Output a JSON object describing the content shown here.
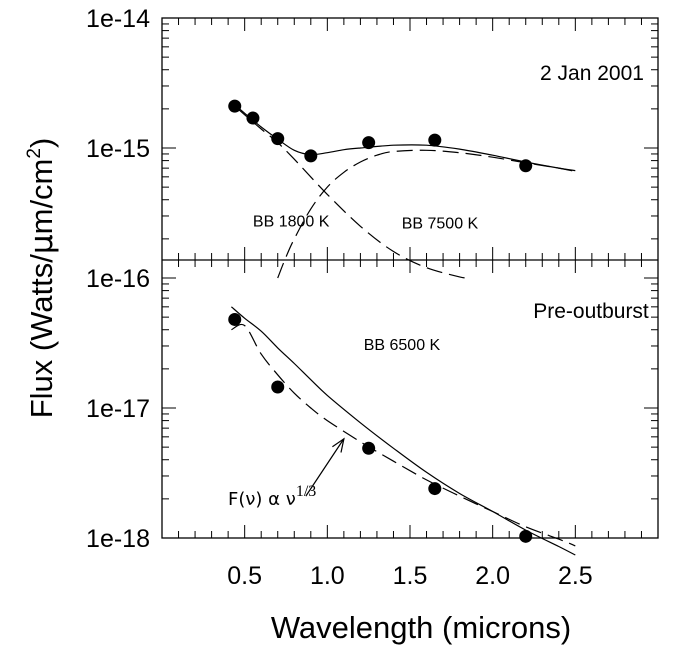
{
  "chart_data": {
    "type": "scatter",
    "xlabel": "Wavelength (microns)",
    "ylabel": {
      "main": "Flux (Watts/",
      "mu": "μ",
      "unit": "m/cm",
      "sup": "2",
      "close": ")"
    },
    "x_axis": {
      "range": [
        0,
        3.0
      ],
      "ticks": [
        0.5,
        1.0,
        1.5,
        2.0,
        2.5
      ],
      "tick_labels": [
        "0.5",
        "1.0",
        "1.5",
        "2.0",
        "2.5"
      ],
      "minor_step": 0.1
    },
    "y_axis": {
      "scale": "log",
      "range": [
        1e-18,
        1e-14
      ],
      "ticks": [
        1e-18,
        1e-17,
        1e-16,
        1e-15,
        1e-14
      ],
      "tick_labels": [
        "1e-18",
        "1e-17",
        "1e-16",
        "1e-15",
        "1e-14"
      ]
    },
    "panels": [
      {
        "label": "2 Jan 2001",
        "y_range": [
          1e-16,
          1e-14
        ],
        "points": [
          {
            "x": 0.44,
            "y": 2.1e-15
          },
          {
            "x": 0.55,
            "y": 1.7e-15
          },
          {
            "x": 0.7,
            "y": 1.18e-15
          },
          {
            "x": 0.9,
            "y": 8.7e-16
          },
          {
            "x": 1.25,
            "y": 1.1e-15
          },
          {
            "x": 1.65,
            "y": 1.15e-15
          },
          {
            "x": 2.2,
            "y": 7.3e-16
          }
        ],
        "curves": [
          {
            "name": "sum",
            "style": "solid",
            "x": [
              0.44,
              0.5,
              0.6,
              0.7,
              0.8,
              0.9,
              1.0,
              1.1,
              1.2,
              1.4,
              1.6,
              1.8,
              2.0,
              2.2,
              2.4,
              2.5
            ],
            "y": [
              2.15e-15,
              1.85e-15,
              1.45e-15,
              1.17e-15,
              9.6e-16,
              8.9e-16,
              9.2e-16,
              9.7e-16,
              1e-15,
              1.05e-15,
              1.05e-15,
              9.8e-16,
              8.8e-16,
              7.8e-16,
              7e-16,
              6.7e-16
            ]
          },
          {
            "name": "BB 1800 K",
            "style": "dashed",
            "x": [
              0.44,
              0.5,
              0.6,
              0.7,
              0.8,
              1.0,
              1.2,
              1.4,
              1.6,
              1.8,
              1.85
            ],
            "y": [
              2.1e-15,
              1.8e-15,
              1.4e-15,
              1.1e-15,
              8.2e-16,
              4.4e-16,
              2.5e-16,
              1.6e-16,
              1.2e-16,
              1.02e-16,
              1e-16
            ]
          },
          {
            "name": "BB 7500 K",
            "style": "dashed",
            "x": [
              0.7,
              0.75,
              0.8,
              0.9,
              1.0,
              1.1,
              1.2,
              1.3,
              1.4,
              1.6,
              1.8,
              2.0,
              2.2,
              2.4,
              2.5
            ],
            "y": [
              1e-16,
              1.45e-16,
              2e-16,
              3.4e-16,
              5e-16,
              6.5e-16,
              7.8e-16,
              8.8e-16,
              9.4e-16,
              9.6e-16,
              9.2e-16,
              8.5e-16,
              7.7e-16,
              7e-16,
              6.6e-16
            ]
          }
        ],
        "annotations": [
          {
            "text": "BB 1800 K",
            "x": 0.55,
            "y": 2.5e-16
          },
          {
            "text": "BB 7500 K",
            "x": 1.45,
            "y": 2.4e-16
          }
        ]
      },
      {
        "label": "Pre-outburst",
        "y_range": [
          1e-18,
          1e-16
        ],
        "points": [
          {
            "x": 0.44,
            "y": 4.8e-17
          },
          {
            "x": 0.7,
            "y": 1.45e-17
          },
          {
            "x": 1.25,
            "y": 4.9e-18
          },
          {
            "x": 1.65,
            "y": 2.4e-18
          },
          {
            "x": 2.2,
            "y": 1.03e-18
          }
        ],
        "curves": [
          {
            "name": "BB 6500 K",
            "style": "solid",
            "x": [
              0.42,
              0.5,
              0.6,
              0.7,
              0.8,
              0.9,
              1.0,
              1.2,
              1.4,
              1.6,
              1.8,
              2.0,
              2.2,
              2.4,
              2.5
            ],
            "y": [
              6e-17,
              4.9e-17,
              3.9e-17,
              2.9e-17,
              2.2e-17,
              1.65e-17,
              1.25e-17,
              7.7e-18,
              4.9e-18,
              3.2e-18,
              2.2e-18,
              1.6e-18,
              1.15e-18,
              8.6e-19,
              7.4e-19
            ]
          },
          {
            "name": "F(ν) α ν^1/3",
            "style": "dashed",
            "x": [
              0.42,
              0.5,
              0.6,
              0.7,
              0.8,
              0.9,
              1.0,
              1.2,
              1.4,
              1.6,
              1.8,
              2.0,
              2.2,
              2.4,
              2.5
            ],
            "y": [
              4e-17,
              4.3e-17,
              2.6e-17,
              1.8e-17,
              1.3e-17,
              1e-17,
              8e-18,
              5.5e-18,
              3.9e-18,
              2.8e-18,
              2.1e-18,
              1.6e-18,
              1.22e-18,
              9.8e-19,
              8.7e-19
            ]
          }
        ],
        "annotations": [
          {
            "text": "BB 6500 K",
            "x": 1.22,
            "y": 2.8e-17
          },
          {
            "text_main": "F(ν) α  ν",
            "text_sup": "1/3",
            "x": 0.7,
            "y": 1.5e-18
          }
        ],
        "arrow": {
          "from": [
            0.87,
            2.1e-18
          ],
          "to": [
            1.1,
            5.8e-18
          ]
        }
      }
    ]
  }
}
